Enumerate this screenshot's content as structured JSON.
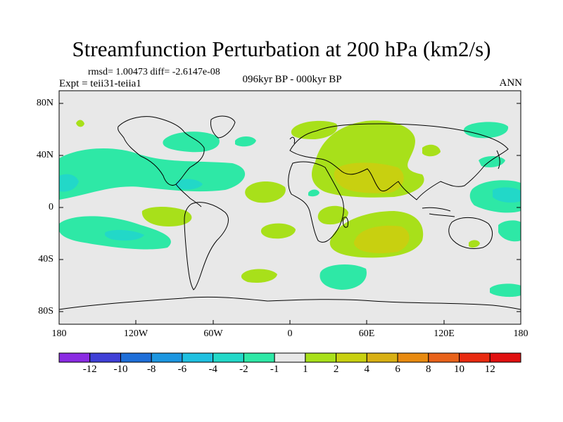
{
  "map": {
    "title": "Streamfunction Perturbation at 200 hPa (km2/s)",
    "stats": "rmsd= 1.00473 diff= -2.6147e-08",
    "experiment": "Expt = teii31-teiia1",
    "period": "096kyr BP - 000kyr BP",
    "season": "ANN",
    "lat_ticks": [
      "80N",
      "40N",
      "0",
      "40S",
      "80S"
    ],
    "lon_ticks": [
      "180",
      "120W",
      "60W",
      "0",
      "60E",
      "120E",
      "180"
    ]
  },
  "colorbar": {
    "labels": [
      "-12",
      "-10",
      "-8",
      "-6",
      "-4",
      "-2",
      "-1",
      "1",
      "2",
      "4",
      "6",
      "8",
      "10",
      "12"
    ],
    "colors": [
      "#8a2be2",
      "#3f3fd6",
      "#1e6ed8",
      "#1c96e0",
      "#1fc0e0",
      "#22d8c8",
      "#2ee8a6",
      "#e8e8e8",
      "#a8e01a",
      "#c8d010",
      "#d8b014",
      "#e88a10",
      "#e8621a",
      "#e82a10",
      "#e01010"
    ]
  },
  "colors": {
    "neutral": "#e8e8e8",
    "positive_1": "#a8e01a",
    "positive_2": "#c8d010",
    "negative_1": "#2ee8a6",
    "negative_2": "#22d8c8",
    "coastline": "#000000"
  }
}
